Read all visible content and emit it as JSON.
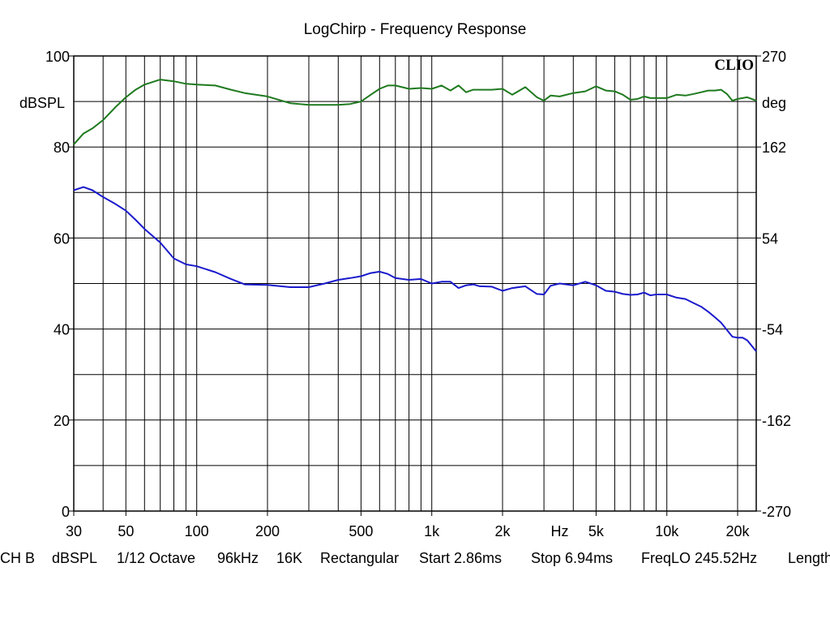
{
  "chart_data": {
    "type": "line",
    "title": "LogChirp - Frequency Response",
    "watermark": "CLIO",
    "x_axis": {
      "scale": "log",
      "range_hz": [
        30,
        24000
      ],
      "ticks": [
        {
          "value": 30,
          "label": "30"
        },
        {
          "value": 50,
          "label": "50"
        },
        {
          "value": 100,
          "label": "100"
        },
        {
          "value": 200,
          "label": "200"
        },
        {
          "value": 500,
          "label": "500"
        },
        {
          "value": 1000,
          "label": "1k"
        },
        {
          "value": 2000,
          "label": "2k"
        },
        {
          "value": 5000,
          "label": "5k"
        },
        {
          "value": 10000,
          "label": "10k"
        },
        {
          "value": 20000,
          "label": "20k"
        }
      ],
      "unit_label": "Hz",
      "unit_label_position": 3500,
      "gridlines": [
        30,
        40,
        50,
        60,
        70,
        80,
        90,
        100,
        200,
        300,
        400,
        500,
        600,
        700,
        800,
        900,
        1000,
        2000,
        3000,
        4000,
        5000,
        6000,
        7000,
        8000,
        9000,
        10000,
        20000
      ]
    },
    "y_left": {
      "label": "dBSPL",
      "range": [
        0,
        100
      ],
      "ticks": [
        "0",
        "20",
        "40",
        "60",
        "80",
        "100"
      ],
      "tick_values": [
        0,
        20,
        40,
        60,
        80,
        100
      ],
      "gridline_step": 10
    },
    "y_right": {
      "label": "deg",
      "range": [
        -270,
        270
      ],
      "ticks": [
        "-270",
        "-162",
        "-54",
        "54",
        "162",
        "270"
      ],
      "tick_values": [
        -270,
        -162,
        -54,
        54,
        162,
        270
      ]
    },
    "grid": true,
    "series": [
      {
        "axis": "left",
        "color": "#1a1acc",
        "x": [
          30,
          33,
          36,
          40,
          45,
          50,
          55,
          60,
          70,
          80,
          90,
          100,
          120,
          140,
          160,
          200,
          250,
          300,
          350,
          400,
          450,
          500,
          550,
          600,
          650,
          700,
          800,
          900,
          1000,
          1100,
          1200,
          1300,
          1400,
          1500,
          1600,
          1800,
          2000,
          2200,
          2500,
          2800,
          3000,
          3200,
          3500,
          4000,
          4500,
          5000,
          5500,
          6000,
          6500,
          7000,
          7500,
          8000,
          8500,
          9000,
          10000,
          11000,
          12000,
          13000,
          14000,
          15000,
          16000,
          17000,
          18000,
          19000,
          20000,
          21000,
          22000,
          24000
        ],
        "values": [
          70.5,
          71.2,
          70.5,
          69,
          67.5,
          66,
          64,
          62,
          59,
          55.5,
          54.2,
          53.8,
          52.5,
          51,
          49.8,
          49.7,
          49.2,
          49.2,
          50,
          50.8,
          51.2,
          51.6,
          52.3,
          52.6,
          52.1,
          51.2,
          50.8,
          51,
          50,
          50.4,
          50.4,
          49,
          49.6,
          49.8,
          49.4,
          49.3,
          48.4,
          49,
          49.4,
          47.7,
          47.6,
          49.5,
          50,
          49.6,
          50.4,
          49.6,
          48.4,
          48.2,
          47.7,
          47.5,
          47.6,
          48,
          47.4,
          47.6,
          47.6,
          46.9,
          46.6,
          45.7,
          44.9,
          43.8,
          42.6,
          41.4,
          39.8,
          38.3,
          38.1,
          38.1,
          37.5,
          35.1
        ]
      },
      {
        "axis": "right",
        "color": "#1f7a1f",
        "x": [
          30,
          33,
          36,
          40,
          45,
          50,
          55,
          60,
          70,
          80,
          90,
          100,
          120,
          140,
          160,
          200,
          250,
          300,
          350,
          400,
          450,
          500,
          550,
          600,
          650,
          700,
          800,
          900,
          1000,
          1100,
          1200,
          1300,
          1400,
          1500,
          1600,
          1800,
          2000,
          2200,
          2500,
          2800,
          3000,
          3200,
          3500,
          4000,
          4500,
          5000,
          5500,
          6000,
          6500,
          7000,
          7500,
          8000,
          8500,
          9000,
          10000,
          11000,
          12000,
          13000,
          14000,
          15000,
          16000,
          17000,
          18000,
          19000,
          20000,
          21000,
          22000,
          24000
        ],
        "values": [
          165,
          178,
          184,
          194,
          209,
          221,
          230,
          236,
          242,
          240,
          237,
          236,
          235,
          230,
          226,
          222,
          214,
          212,
          212,
          212,
          213,
          216,
          224,
          231,
          235,
          235,
          231,
          232,
          231,
          235,
          229,
          235,
          227,
          230,
          230,
          230,
          231,
          224,
          233,
          221,
          217,
          223,
          222,
          226,
          228,
          234,
          229,
          228,
          224,
          218,
          219,
          222,
          220,
          220,
          220,
          224,
          223,
          225,
          227,
          229,
          229,
          230,
          225,
          217,
          219,
          220,
          221,
          217
        ]
      }
    ]
  },
  "footer": {
    "channel": "CH B",
    "unit": "dBSPL",
    "smoothing": "1/12 Octave",
    "sample_rate": "96kHz",
    "fft_size": "16K",
    "window": "Rectangular",
    "start": "Start 2.86ms",
    "stop": "Stop 6.94ms",
    "freq_lo": "FreqLO 245.52Hz",
    "length": "Length"
  }
}
